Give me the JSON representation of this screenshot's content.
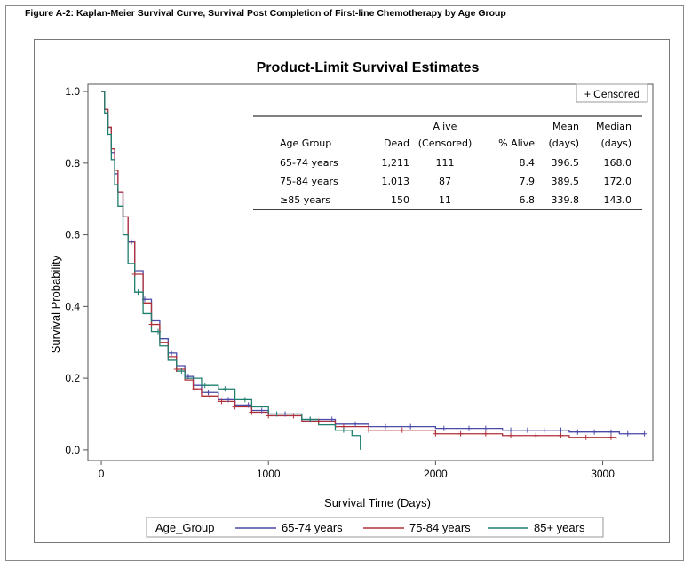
{
  "figure_caption": "Figure A-2: Kaplan-Meier Survival Curve, Survival Post Completion of First-line Chemotherapy by Age Group",
  "chart_data": {
    "type": "line",
    "step": true,
    "title": "Product-Limit Survival Estimates",
    "xlabel": "Survival Time (Days)",
    "ylabel": "Survival Probability",
    "xlim": [
      -80,
      3300
    ],
    "ylim": [
      -0.03,
      1.02
    ],
    "xticks": [
      0,
      1000,
      2000,
      3000
    ],
    "xtick_labels": [
      "0",
      "1000",
      "2000",
      "3000"
    ],
    "yticks": [
      0.0,
      0.2,
      0.4,
      0.6,
      0.8,
      1.0
    ],
    "ytick_labels": [
      "0.0",
      "0.2",
      "0.4",
      "0.6",
      "0.8",
      "1.0"
    ],
    "grid": false,
    "censored_legend": "+ Censored",
    "legend": {
      "title": "Age_Group",
      "position": "bottom",
      "entries": [
        "65-74 years",
        "75-84 years",
        "85+ years"
      ]
    },
    "series": [
      {
        "name": "65-74 years",
        "color": "#4a4aa8",
        "points": [
          [
            0,
            1.0
          ],
          [
            20,
            0.95
          ],
          [
            40,
            0.9
          ],
          [
            60,
            0.83
          ],
          [
            80,
            0.77
          ],
          [
            100,
            0.72
          ],
          [
            130,
            0.65
          ],
          [
            160,
            0.58
          ],
          [
            200,
            0.5
          ],
          [
            250,
            0.42
          ],
          [
            300,
            0.36
          ],
          [
            350,
            0.31
          ],
          [
            400,
            0.27
          ],
          [
            450,
            0.235
          ],
          [
            500,
            0.205
          ],
          [
            550,
            0.18
          ],
          [
            600,
            0.16
          ],
          [
            700,
            0.14
          ],
          [
            800,
            0.125
          ],
          [
            900,
            0.11
          ],
          [
            1000,
            0.1
          ],
          [
            1200,
            0.085
          ],
          [
            1400,
            0.072
          ],
          [
            1600,
            0.065
          ],
          [
            2000,
            0.06
          ],
          [
            2400,
            0.055
          ],
          [
            2800,
            0.05
          ],
          [
            3100,
            0.045
          ],
          [
            3250,
            0.045
          ]
        ],
        "censor_x": [
          180,
          260,
          420,
          520,
          640,
          760,
          880,
          960,
          1100,
          1250,
          1380,
          1520,
          1700,
          1850,
          2050,
          2200,
          2300,
          2450,
          2550,
          2650,
          2750,
          2850,
          2950,
          3050,
          3150,
          3250
        ]
      },
      {
        "name": "75-84 years",
        "color": "#b0303a",
        "points": [
          [
            0,
            1.0
          ],
          [
            20,
            0.95
          ],
          [
            40,
            0.9
          ],
          [
            60,
            0.84
          ],
          [
            80,
            0.78
          ],
          [
            100,
            0.72
          ],
          [
            130,
            0.65
          ],
          [
            160,
            0.58
          ],
          [
            200,
            0.49
          ],
          [
            250,
            0.41
          ],
          [
            300,
            0.35
          ],
          [
            350,
            0.3
          ],
          [
            400,
            0.26
          ],
          [
            450,
            0.225
          ],
          [
            500,
            0.195
          ],
          [
            550,
            0.17
          ],
          [
            600,
            0.15
          ],
          [
            700,
            0.135
          ],
          [
            800,
            0.12
          ],
          [
            900,
            0.105
          ],
          [
            1000,
            0.095
          ],
          [
            1200,
            0.08
          ],
          [
            1400,
            0.065
          ],
          [
            1600,
            0.055
          ],
          [
            2000,
            0.045
          ],
          [
            2400,
            0.04
          ],
          [
            2800,
            0.035
          ],
          [
            3080,
            0.03
          ]
        ],
        "censor_x": [
          200,
          300,
          450,
          560,
          650,
          720,
          800,
          900,
          1000,
          1150,
          1300,
          1450,
          1600,
          1800,
          2000,
          2150,
          2300,
          2450,
          2600,
          2750,
          2900,
          3050
        ]
      },
      {
        "name": "85+ years",
        "color": "#1f7f6e",
        "points": [
          [
            0,
            1.0
          ],
          [
            20,
            0.94
          ],
          [
            40,
            0.88
          ],
          [
            60,
            0.81
          ],
          [
            80,
            0.74
          ],
          [
            100,
            0.68
          ],
          [
            130,
            0.6
          ],
          [
            160,
            0.52
          ],
          [
            200,
            0.44
          ],
          [
            250,
            0.38
          ],
          [
            300,
            0.33
          ],
          [
            350,
            0.29
          ],
          [
            400,
            0.25
          ],
          [
            450,
            0.22
          ],
          [
            500,
            0.2
          ],
          [
            600,
            0.18
          ],
          [
            700,
            0.17
          ],
          [
            800,
            0.14
          ],
          [
            900,
            0.12
          ],
          [
            1000,
            0.1
          ],
          [
            1200,
            0.085
          ],
          [
            1300,
            0.07
          ],
          [
            1400,
            0.055
          ],
          [
            1500,
            0.04
          ],
          [
            1550,
            0.0
          ]
        ],
        "censor_x": [
          220,
          340,
          480,
          620,
          740,
          860,
          1050,
          1250,
          1450
        ]
      }
    ],
    "table": {
      "header_top": [
        "",
        "",
        "Alive",
        "",
        "Mean",
        "Median"
      ],
      "header_bottom": [
        "Age Group",
        "Dead",
        "(Censored)",
        "% Alive",
        "(days)",
        "(days)"
      ],
      "rows": [
        [
          "65-74 years",
          "1,211",
          "111",
          "8.4",
          "396.5",
          "168.0"
        ],
        [
          "75-84 years",
          "1,013",
          "87",
          "7.9",
          "389.5",
          "172.0"
        ],
        [
          "≥85 years",
          "150",
          "11",
          "6.8",
          "339.8",
          "143.0"
        ]
      ]
    }
  }
}
